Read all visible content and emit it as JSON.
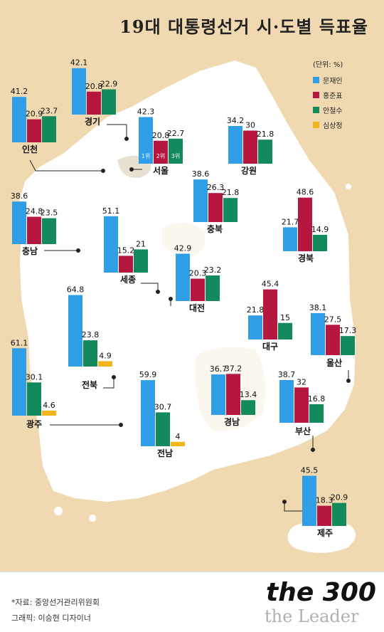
{
  "title": "19대 대통령선거 시·도별 득표율",
  "legend": {
    "unit": "(단위: %)",
    "items": [
      {
        "name": "문재인",
        "color": "#2f9ee6"
      },
      {
        "name": "홍준표",
        "color": "#b5173f"
      },
      {
        "name": "안철수",
        "color": "#128a5c"
      },
      {
        "name": "심상정",
        "color": "#f2b51b"
      }
    ]
  },
  "rank_labels": [
    "1위",
    "2위",
    "3위"
  ],
  "footer": {
    "source": "*자료: 중앙선거관리위원회",
    "credit": "그래픽: 이승현 디자이너",
    "brand_top": "the 300",
    "brand_bottom": "the Leader"
  },
  "chart_data": {
    "type": "bar",
    "title": "19대 대통령선거 시·도별 득표율",
    "unit": "%",
    "series_names": [
      "문재인",
      "홍준표",
      "안철수",
      "심상정"
    ],
    "regions": [
      {
        "name": "인천",
        "values": [
          41.2,
          20.9,
          23.7
        ]
      },
      {
        "name": "경기",
        "values": [
          42.1,
          20.8,
          22.9
        ]
      },
      {
        "name": "서울",
        "values": [
          42.3,
          20.8,
          22.7
        ]
      },
      {
        "name": "강원",
        "values": [
          34.2,
          30,
          21.8
        ]
      },
      {
        "name": "충남",
        "values": [
          38.6,
          24.8,
          23.5
        ]
      },
      {
        "name": "세종",
        "values": [
          51.1,
          15.2,
          21
        ]
      },
      {
        "name": "충북",
        "values": [
          38.6,
          26.3,
          21.8
        ]
      },
      {
        "name": "경북",
        "values": [
          21.7,
          48.6,
          14.9
        ]
      },
      {
        "name": "대전",
        "values": [
          42.9,
          20.3,
          23.2
        ]
      },
      {
        "name": "전북",
        "values": [
          64.8,
          null,
          23.8,
          4.9
        ]
      },
      {
        "name": "대구",
        "values": [
          21.8,
          45.4,
          15
        ]
      },
      {
        "name": "울산",
        "values": [
          38.1,
          27.5,
          17.3
        ]
      },
      {
        "name": "광주",
        "values": [
          61.1,
          null,
          30.1,
          4.6
        ]
      },
      {
        "name": "전남",
        "values": [
          59.9,
          null,
          30.7,
          4
        ]
      },
      {
        "name": "경남",
        "values": [
          36.7,
          37.2,
          13.4
        ]
      },
      {
        "name": "부산",
        "values": [
          38.7,
          32,
          16.8
        ]
      },
      {
        "name": "제주",
        "values": [
          45.5,
          18.3,
          20.9
        ]
      }
    ]
  }
}
